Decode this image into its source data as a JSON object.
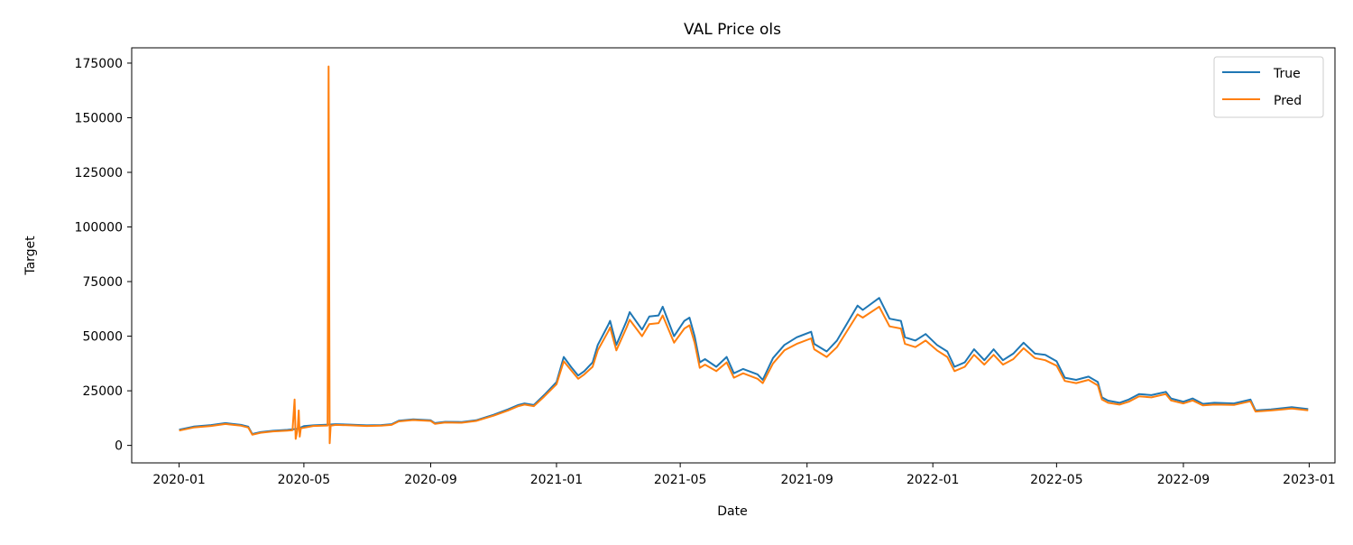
{
  "chart_data": {
    "type": "line",
    "title": "VAL Price ols",
    "xlabel": "Date",
    "ylabel": "Target",
    "x_range": [
      "2019-11-16",
      "2023-01-26"
    ],
    "ylim": [
      -8000,
      182000
    ],
    "x_ticks": [
      "2020-01",
      "2020-05",
      "2020-09",
      "2021-01",
      "2021-05",
      "2021-09",
      "2022-01",
      "2022-05",
      "2022-09",
      "2023-01"
    ],
    "y_ticks": [
      0,
      25000,
      50000,
      75000,
      100000,
      125000,
      150000,
      175000
    ],
    "y_tick_labels": [
      "0",
      "25000",
      "50000",
      "75000",
      "100000",
      "125000",
      "150000",
      "175000"
    ],
    "grid": false,
    "legend_position": "upper right",
    "series": [
      {
        "name": "True",
        "color": "#1f77b4",
        "points": [
          [
            "2020-01-01",
            7200
          ],
          [
            "2020-01-15",
            8600
          ],
          [
            "2020-02-01",
            9300
          ],
          [
            "2020-02-15",
            10200
          ],
          [
            "2020-03-01",
            9400
          ],
          [
            "2020-03-08",
            8600
          ],
          [
            "2020-03-12",
            5200
          ],
          [
            "2020-03-20",
            6100
          ],
          [
            "2020-04-01",
            6700
          ],
          [
            "2020-04-15",
            7100
          ],
          [
            "2020-04-25",
            7600
          ],
          [
            "2020-05-01",
            8800
          ],
          [
            "2020-05-10",
            9200
          ],
          [
            "2020-05-20",
            9400
          ],
          [
            "2020-06-01",
            9700
          ],
          [
            "2020-06-15",
            9500
          ],
          [
            "2020-07-01",
            9200
          ],
          [
            "2020-07-15",
            9300
          ],
          [
            "2020-07-25",
            9700
          ],
          [
            "2020-08-01",
            11300
          ],
          [
            "2020-08-15",
            11900
          ],
          [
            "2020-09-01",
            11500
          ],
          [
            "2020-09-05",
            10200
          ],
          [
            "2020-09-15",
            10800
          ],
          [
            "2020-10-01",
            10700
          ],
          [
            "2020-10-15",
            11500
          ],
          [
            "2020-10-25",
            13000
          ],
          [
            "2020-11-01",
            14000
          ],
          [
            "2020-11-15",
            16500
          ],
          [
            "2020-11-25",
            18500
          ],
          [
            "2020-12-01",
            19200
          ],
          [
            "2020-12-10",
            18500
          ],
          [
            "2020-12-20",
            23000
          ],
          [
            "2021-01-01",
            29000
          ],
          [
            "2021-01-08",
            40500
          ],
          [
            "2021-01-15",
            36000
          ],
          [
            "2021-01-22",
            32000
          ],
          [
            "2021-01-28",
            34000
          ],
          [
            "2021-02-05",
            38000
          ],
          [
            "2021-02-10",
            46000
          ],
          [
            "2021-02-20",
            55000
          ],
          [
            "2021-02-22",
            57000
          ],
          [
            "2021-02-28",
            46000
          ],
          [
            "2021-03-10",
            57000
          ],
          [
            "2021-03-13",
            61000
          ],
          [
            "2021-03-25",
            53000
          ],
          [
            "2021-04-01",
            59000
          ],
          [
            "2021-04-10",
            59500
          ],
          [
            "2021-04-14",
            63500
          ],
          [
            "2021-04-25",
            50000
          ],
          [
            "2021-05-05",
            57000
          ],
          [
            "2021-05-10",
            58500
          ],
          [
            "2021-05-15",
            50000
          ],
          [
            "2021-05-20",
            38000
          ],
          [
            "2021-05-25",
            39500
          ],
          [
            "2021-06-05",
            36000
          ],
          [
            "2021-06-15",
            40500
          ],
          [
            "2021-06-22",
            33000
          ],
          [
            "2021-07-01",
            35000
          ],
          [
            "2021-07-15",
            32500
          ],
          [
            "2021-07-20",
            30000
          ],
          [
            "2021-07-30",
            40000
          ],
          [
            "2021-08-10",
            46000
          ],
          [
            "2021-08-22",
            49500
          ],
          [
            "2021-09-05",
            52000
          ],
          [
            "2021-09-08",
            46500
          ],
          [
            "2021-09-20",
            43000
          ],
          [
            "2021-09-30",
            48000
          ],
          [
            "2021-10-10",
            56000
          ],
          [
            "2021-10-20",
            64000
          ],
          [
            "2021-10-25",
            62000
          ],
          [
            "2021-11-10",
            67500
          ],
          [
            "2021-11-20",
            58000
          ],
          [
            "2021-12-01",
            57000
          ],
          [
            "2021-12-05",
            49500
          ],
          [
            "2021-12-15",
            48000
          ],
          [
            "2021-12-25",
            51000
          ],
          [
            "2022-01-05",
            46000
          ],
          [
            "2022-01-15",
            43000
          ],
          [
            "2022-01-22",
            36000
          ],
          [
            "2022-02-01",
            38000
          ],
          [
            "2022-02-10",
            44000
          ],
          [
            "2022-02-20",
            39000
          ],
          [
            "2022-03-01",
            44000
          ],
          [
            "2022-03-10",
            39000
          ],
          [
            "2022-03-20",
            42000
          ],
          [
            "2022-03-30",
            47000
          ],
          [
            "2022-04-10",
            42000
          ],
          [
            "2022-04-20",
            41500
          ],
          [
            "2022-05-01",
            38500
          ],
          [
            "2022-05-09",
            31000
          ],
          [
            "2022-05-20",
            30000
          ],
          [
            "2022-06-01",
            31500
          ],
          [
            "2022-06-10",
            29000
          ],
          [
            "2022-06-14",
            22000
          ],
          [
            "2022-06-20",
            20500
          ],
          [
            "2022-07-01",
            19500
          ],
          [
            "2022-07-10",
            21000
          ],
          [
            "2022-07-20",
            23500
          ],
          [
            "2022-08-01",
            23000
          ],
          [
            "2022-08-15",
            24500
          ],
          [
            "2022-08-20",
            21500
          ],
          [
            "2022-09-01",
            20000
          ],
          [
            "2022-09-10",
            21500
          ],
          [
            "2022-09-20",
            19000
          ],
          [
            "2022-10-01",
            19500
          ],
          [
            "2022-10-20",
            19200
          ],
          [
            "2022-11-05",
            21000
          ],
          [
            "2022-11-09",
            17000
          ],
          [
            "2022-11-10",
            16000
          ],
          [
            "2022-11-25",
            16500
          ],
          [
            "2022-12-05",
            17000
          ],
          [
            "2022-12-15",
            17500
          ],
          [
            "2022-12-31",
            16600
          ]
        ]
      },
      {
        "name": "Pred",
        "color": "#ff7f0e",
        "points": [
          [
            "2020-01-01",
            6800
          ],
          [
            "2020-01-15",
            8200
          ],
          [
            "2020-02-01",
            8900
          ],
          [
            "2020-02-15",
            9800
          ],
          [
            "2020-03-01",
            9000
          ],
          [
            "2020-03-08",
            8200
          ],
          [
            "2020-03-12",
            4900
          ],
          [
            "2020-03-20",
            5800
          ],
          [
            "2020-04-01",
            6400
          ],
          [
            "2020-04-15",
            6800
          ],
          [
            "2020-04-20",
            7000
          ],
          [
            "2020-04-22",
            21000
          ],
          [
            "2020-04-23",
            3000
          ],
          [
            "2020-04-25",
            7500
          ],
          [
            "2020-04-26",
            16000
          ],
          [
            "2020-04-27",
            4000
          ],
          [
            "2020-04-28",
            7800
          ],
          [
            "2020-05-10",
            8900
          ],
          [
            "2020-05-24",
            9100
          ],
          [
            "2020-05-25",
            173500
          ],
          [
            "2020-05-26",
            1000
          ],
          [
            "2020-05-27",
            9000
          ],
          [
            "2020-06-01",
            9400
          ],
          [
            "2020-06-15",
            9200
          ],
          [
            "2020-07-01",
            8900
          ],
          [
            "2020-07-15",
            9000
          ],
          [
            "2020-07-25",
            9400
          ],
          [
            "2020-08-01",
            11000
          ],
          [
            "2020-08-15",
            11600
          ],
          [
            "2020-09-01",
            11200
          ],
          [
            "2020-09-05",
            9900
          ],
          [
            "2020-09-15",
            10500
          ],
          [
            "2020-10-01",
            10400
          ],
          [
            "2020-10-15",
            11200
          ],
          [
            "2020-10-25",
            12600
          ],
          [
            "2020-11-01",
            13600
          ],
          [
            "2020-11-15",
            16000
          ],
          [
            "2020-11-25",
            18000
          ],
          [
            "2020-12-01",
            18700
          ],
          [
            "2020-12-10",
            18000
          ],
          [
            "2020-12-20",
            22300
          ],
          [
            "2021-01-01",
            28000
          ],
          [
            "2021-01-08",
            38500
          ],
          [
            "2021-01-15",
            34500
          ],
          [
            "2021-01-22",
            30500
          ],
          [
            "2021-01-28",
            32500
          ],
          [
            "2021-02-05",
            36000
          ],
          [
            "2021-02-10",
            43500
          ],
          [
            "2021-02-20",
            52000
          ],
          [
            "2021-02-22",
            54000
          ],
          [
            "2021-02-28",
            43500
          ],
          [
            "2021-03-10",
            54000
          ],
          [
            "2021-03-13",
            57500
          ],
          [
            "2021-03-25",
            50000
          ],
          [
            "2021-04-01",
            55500
          ],
          [
            "2021-04-10",
            56000
          ],
          [
            "2021-04-14",
            59500
          ],
          [
            "2021-04-25",
            47000
          ],
          [
            "2021-05-05",
            53500
          ],
          [
            "2021-05-10",
            55000
          ],
          [
            "2021-05-15",
            47000
          ],
          [
            "2021-05-20",
            35500
          ],
          [
            "2021-05-25",
            37000
          ],
          [
            "2021-06-05",
            34000
          ],
          [
            "2021-06-15",
            38000
          ],
          [
            "2021-06-22",
            31000
          ],
          [
            "2021-07-01",
            33000
          ],
          [
            "2021-07-15",
            30500
          ],
          [
            "2021-07-20",
            28500
          ],
          [
            "2021-07-30",
            37500
          ],
          [
            "2021-08-10",
            43500
          ],
          [
            "2021-08-22",
            46500
          ],
          [
            "2021-09-05",
            49000
          ],
          [
            "2021-09-08",
            44000
          ],
          [
            "2021-09-20",
            40500
          ],
          [
            "2021-09-30",
            45000
          ],
          [
            "2021-10-10",
            52500
          ],
          [
            "2021-10-20",
            60000
          ],
          [
            "2021-10-25",
            58500
          ],
          [
            "2021-11-10",
            63500
          ],
          [
            "2021-11-20",
            54500
          ],
          [
            "2021-12-01",
            53500
          ],
          [
            "2021-12-05",
            46500
          ],
          [
            "2021-12-15",
            45000
          ],
          [
            "2021-12-25",
            48000
          ],
          [
            "2022-01-05",
            43500
          ],
          [
            "2022-01-15",
            40500
          ],
          [
            "2022-01-22",
            34000
          ],
          [
            "2022-02-01",
            36000
          ],
          [
            "2022-02-10",
            41500
          ],
          [
            "2022-02-20",
            37000
          ],
          [
            "2022-03-01",
            41500
          ],
          [
            "2022-03-10",
            37000
          ],
          [
            "2022-03-20",
            39500
          ],
          [
            "2022-03-30",
            44500
          ],
          [
            "2022-04-10",
            40000
          ],
          [
            "2022-04-20",
            39000
          ],
          [
            "2022-05-01",
            36500
          ],
          [
            "2022-05-09",
            29500
          ],
          [
            "2022-05-20",
            28500
          ],
          [
            "2022-06-01",
            30000
          ],
          [
            "2022-06-10",
            27500
          ],
          [
            "2022-06-14",
            21000
          ],
          [
            "2022-06-20",
            19500
          ],
          [
            "2022-07-01",
            18700
          ],
          [
            "2022-07-10",
            20000
          ],
          [
            "2022-07-20",
            22500
          ],
          [
            "2022-08-01",
            22000
          ],
          [
            "2022-08-15",
            23500
          ],
          [
            "2022-08-20",
            20600
          ],
          [
            "2022-09-01",
            19200
          ],
          [
            "2022-09-10",
            20600
          ],
          [
            "2022-09-20",
            18300
          ],
          [
            "2022-10-01",
            18700
          ],
          [
            "2022-10-20",
            18500
          ],
          [
            "2022-11-05",
            20200
          ],
          [
            "2022-11-09",
            16400
          ],
          [
            "2022-11-10",
            15500
          ],
          [
            "2022-11-25",
            16000
          ],
          [
            "2022-12-05",
            16400
          ],
          [
            "2022-12-15",
            16900
          ],
          [
            "2022-12-31",
            16100
          ]
        ]
      }
    ]
  }
}
